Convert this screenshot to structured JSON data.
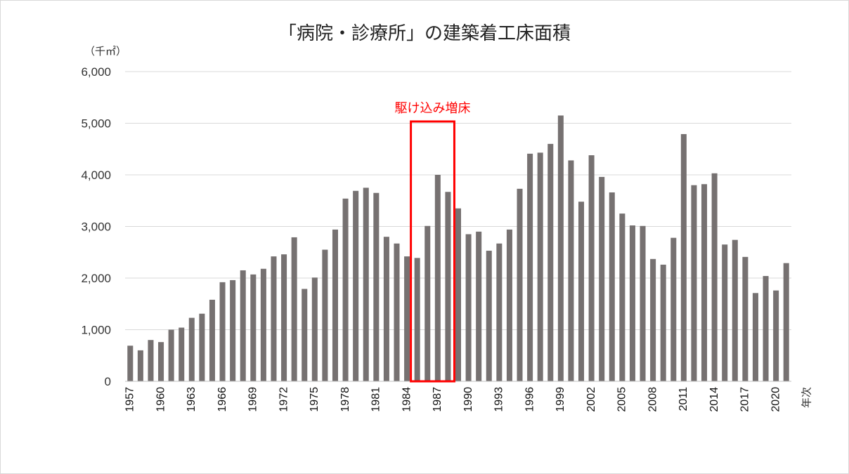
{
  "chart_data": {
    "type": "bar",
    "title": "「病院・診療所」の建築着工床面積",
    "unit_label": "（千㎡）",
    "xlabel": "年次",
    "ylabel": "",
    "ylim": [
      0,
      6000
    ],
    "y_ticks": [
      0,
      1000,
      2000,
      3000,
      4000,
      5000,
      6000
    ],
    "y_tick_labels": [
      "0",
      "1,000",
      "2,000",
      "3,000",
      "4,000",
      "5,000",
      "6,000"
    ],
    "grid": true,
    "bar_color": "#767171",
    "x": [
      1957,
      1958,
      1959,
      1960,
      1961,
      1962,
      1963,
      1964,
      1965,
      1966,
      1967,
      1968,
      1969,
      1970,
      1971,
      1972,
      1973,
      1974,
      1975,
      1976,
      1977,
      1978,
      1979,
      1980,
      1981,
      1982,
      1983,
      1984,
      1985,
      1986,
      1987,
      1988,
      1989,
      1990,
      1991,
      1992,
      1993,
      1994,
      1995,
      1996,
      1997,
      1998,
      1999,
      2000,
      2001,
      2002,
      2003,
      2004,
      2005,
      2006,
      2007,
      2008,
      2009,
      2010,
      2011,
      2012,
      2013,
      2014,
      2015,
      2016,
      2017,
      2018,
      2019,
      2020,
      2021
    ],
    "values": [
      690,
      600,
      800,
      760,
      1000,
      1040,
      1230,
      1310,
      1580,
      1920,
      1960,
      2150,
      2070,
      2180,
      2420,
      2460,
      2790,
      1790,
      2010,
      2550,
      2940,
      3540,
      3690,
      3750,
      3650,
      2800,
      2670,
      2420,
      2390,
      3010,
      4000,
      3670,
      3350,
      2850,
      2900,
      2530,
      2670,
      2940,
      3730,
      4410,
      4430,
      4600,
      5150,
      4280,
      3480,
      4380,
      3960,
      3660,
      3250,
      3020,
      3010,
      2370,
      2260,
      2780,
      4790,
      3800,
      3820,
      4030,
      2650,
      2740,
      2410,
      1710,
      2040,
      1760,
      2290
    ],
    "x_tick_labels": [
      "1957",
      "1960",
      "1963",
      "1966",
      "1969",
      "1972",
      "1975",
      "1978",
      "1981",
      "1984",
      "1987",
      "1990",
      "1993",
      "1996",
      "1999",
      "2002",
      "2005",
      "2008",
      "2011",
      "2014",
      "2017",
      "2020"
    ],
    "annotation": {
      "text": "駆け込み増床",
      "color": "#ff0000",
      "range": [
        1985,
        1988
      ]
    }
  }
}
